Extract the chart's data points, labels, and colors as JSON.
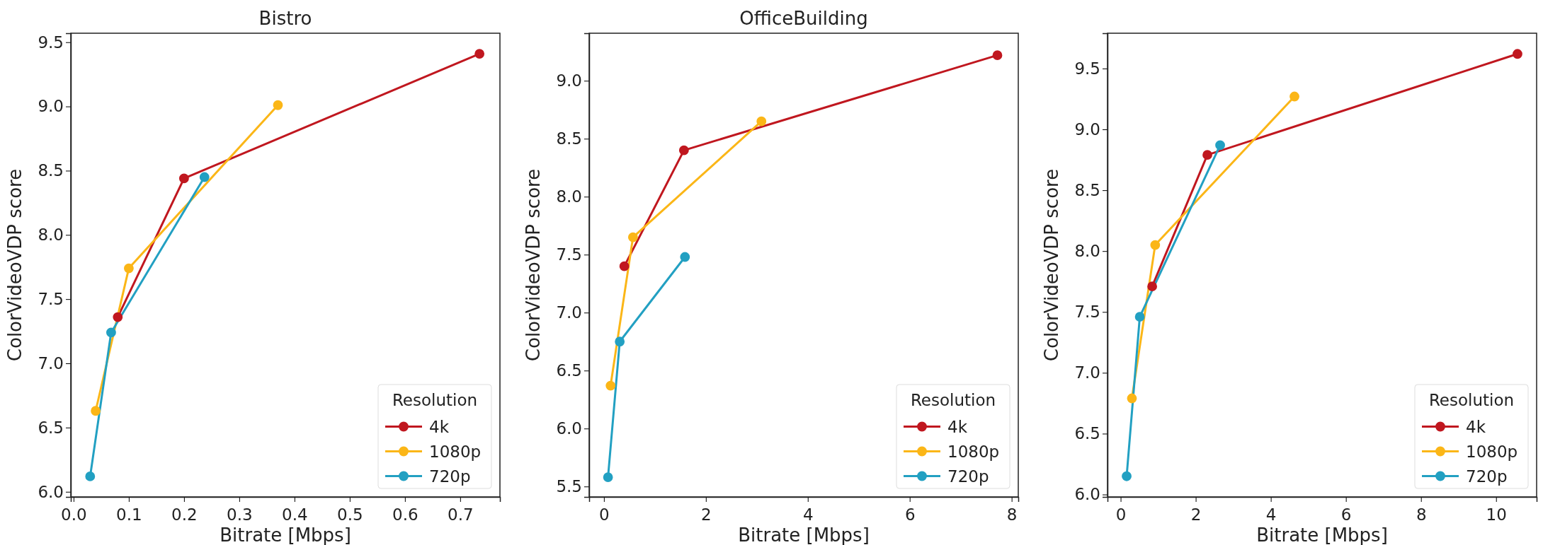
{
  "chart_data": [
    {
      "type": "line",
      "title": "Bistro",
      "xlabel": "Bitrate [Mbps]",
      "ylabel": "ColorVideoVDP score",
      "legend_title": "Resolution",
      "legend": "bottom right",
      "marker": "circle",
      "line_style": "solid",
      "grid": false,
      "xlim": [
        -0.005,
        0.772
      ],
      "xticks": [
        {
          "value": 0,
          "label": "0.0"
        },
        0.1,
        0.2,
        0.3,
        0.4,
        0.5,
        0.6,
        0.7
      ],
      "ylim": [
        5.96,
        9.57
      ],
      "yticks": [
        {
          "value": 6,
          "label": "6.0"
        },
        6.5,
        {
          "value": 7,
          "label": "7.0"
        },
        7.5,
        {
          "value": 8,
          "label": "8.0"
        },
        8.5,
        {
          "value": 9,
          "label": "9.0"
        },
        9.5
      ],
      "series": [
        {
          "name": "4k",
          "color": "#c0171f",
          "x": [
            0.08,
            0.2,
            0.735
          ],
          "values": [
            7.36,
            8.44,
            9.41
          ]
        },
        {
          "name": "1080p",
          "color": "#fbb617",
          "x": [
            0.04,
            0.1,
            0.37
          ],
          "values": [
            6.63,
            7.74,
            9.01
          ]
        },
        {
          "name": "720p",
          "color": "#22a0c2",
          "x": [
            0.03,
            0.068,
            0.237
          ],
          "values": [
            6.12,
            7.24,
            8.45
          ]
        }
      ]
    },
    {
      "type": "line",
      "title": "OfficeBuilding",
      "xlabel": "Bitrate [Mbps]",
      "ylabel": "ColorVideoVDP score",
      "legend_title": "Resolution",
      "legend": "bottom right",
      "marker": "circle",
      "line_style": "solid",
      "grid": false,
      "xlim": [
        -0.29,
        8.13
      ],
      "xticks": [
        0,
        2,
        4,
        6,
        8
      ],
      "ylim": [
        5.41,
        9.41
      ],
      "yticks": [
        5.5,
        {
          "value": 6,
          "label": "6.0"
        },
        6.5,
        {
          "value": 7,
          "label": "7.0"
        },
        7.5,
        {
          "value": 8,
          "label": "8.0"
        },
        8.5,
        {
          "value": 9,
          "label": "9.0"
        }
      ],
      "series": [
        {
          "name": "4k",
          "color": "#c0171f",
          "x": [
            0.4,
            1.57,
            7.72
          ],
          "values": [
            7.4,
            8.4,
            9.22
          ]
        },
        {
          "name": "1080p",
          "color": "#fbb617",
          "x": [
            0.13,
            0.57,
            3.09
          ],
          "values": [
            6.37,
            7.65,
            8.65
          ]
        },
        {
          "name": "720p",
          "color": "#22a0c2",
          "x": [
            0.08,
            0.31,
            1.59
          ],
          "values": [
            5.58,
            6.75,
            7.48
          ]
        }
      ]
    },
    {
      "type": "line",
      "xlabel": "Bitrate [Mbps]",
      "ylabel": "ColorVideoVDP score",
      "legend_title": "Resolution",
      "legend": "bottom right",
      "marker": "circle",
      "line_style": "solid",
      "grid": false,
      "xlim": [
        -0.35,
        11.08
      ],
      "xticks": [
        0,
        2,
        4,
        6,
        8,
        10
      ],
      "ylim": [
        5.98,
        9.79
      ],
      "yticks": [
        {
          "value": 6,
          "label": "6.0"
        },
        6.5,
        {
          "value": 7,
          "label": "7.0"
        },
        7.5,
        {
          "value": 8,
          "label": "8.0"
        },
        8.5,
        {
          "value": 9,
          "label": "9.0"
        },
        9.5
      ],
      "series": [
        {
          "name": "4k",
          "color": "#c0171f",
          "x": [
            0.84,
            2.31,
            10.57
          ],
          "values": [
            7.71,
            8.79,
            9.62
          ]
        },
        {
          "name": "1080p",
          "color": "#fbb617",
          "x": [
            0.3,
            0.92,
            4.63
          ],
          "values": [
            6.79,
            8.05,
            9.27
          ]
        },
        {
          "name": "720p",
          "color": "#22a0c2",
          "x": [
            0.16,
            0.51,
            2.65
          ],
          "values": [
            6.15,
            7.46,
            8.87
          ]
        }
      ]
    }
  ]
}
